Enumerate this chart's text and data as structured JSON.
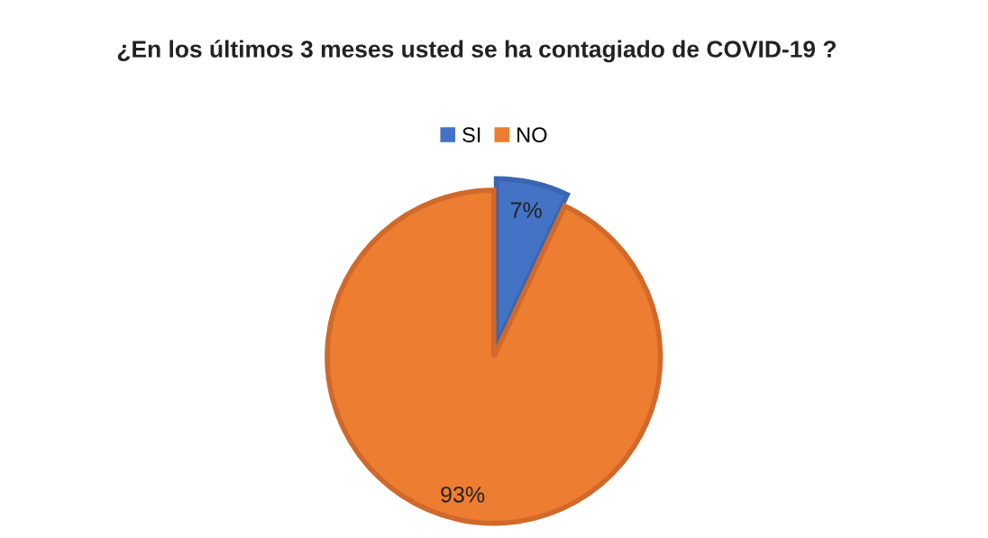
{
  "chart_data": {
    "type": "pie",
    "title": "¿En los últimos 3 meses usted se ha contagiado de COVID-19 ?",
    "categories": [
      "SI",
      "NO"
    ],
    "values": [
      7,
      93
    ],
    "colors": [
      "#4472c4",
      "#ed7d31"
    ],
    "value_labels": [
      "7%",
      "93%"
    ],
    "legend": "top"
  }
}
